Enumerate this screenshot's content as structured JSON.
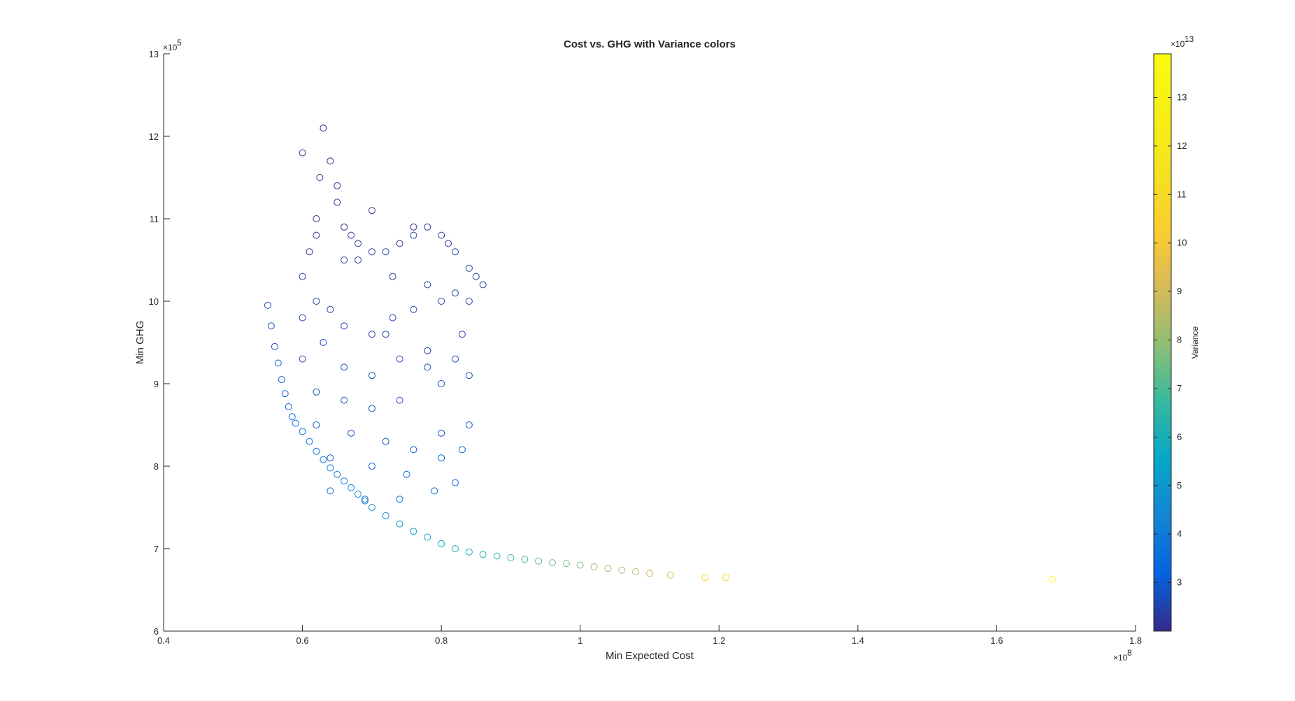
{
  "chart_data": {
    "type": "scatter",
    "title": "Cost vs. GHG with Variance colors",
    "xlabel": "Min Expected Cost",
    "ylabel": "Min GHG",
    "colorbar_label": "Variance",
    "x_axis": {
      "lim": [
        0.4,
        1.8
      ],
      "ticks": [
        0.4,
        0.6,
        0.8,
        1.0,
        1.2,
        1.4,
        1.6,
        1.8
      ],
      "tick_labels": [
        "0.4",
        "0.6",
        "0.8",
        "1",
        "1.2",
        "1.4",
        "1.6",
        "1.8"
      ],
      "exponent_base": "×10",
      "exponent": "8"
    },
    "y_axis": {
      "lim": [
        6,
        13
      ],
      "ticks": [
        6,
        7,
        8,
        9,
        10,
        11,
        12,
        13
      ],
      "tick_labels": [
        "6",
        "7",
        "8",
        "9",
        "10",
        "11",
        "12",
        "13"
      ],
      "exponent_base": "×10",
      "exponent": "5"
    },
    "colorbar": {
      "lim": [
        2.0,
        13.9
      ],
      "ticks": [
        3,
        4,
        5,
        6,
        7,
        8,
        9,
        10,
        11,
        12,
        13
      ],
      "tick_labels": [
        "3",
        "4",
        "5",
        "6",
        "7",
        "8",
        "9",
        "10",
        "11",
        "12",
        "13"
      ],
      "exponent_base": "×10",
      "exponent": "13",
      "colormap": "parula"
    },
    "grid": false,
    "marker": "open-circle",
    "front_points": {
      "x": [
        0.55,
        0.555,
        0.56,
        0.565,
        0.57,
        0.575,
        0.58,
        0.585,
        0.59,
        0.6,
        0.61,
        0.62,
        0.63,
        0.64,
        0.65,
        0.66,
        0.67,
        0.68,
        0.69,
        0.7,
        0.72,
        0.74,
        0.76,
        0.78,
        0.8,
        0.82,
        0.84,
        0.86,
        0.88,
        0.9,
        0.92,
        0.94,
        0.96,
        0.98,
        1.0,
        1.02,
        1.04,
        1.06,
        1.08,
        1.1,
        1.13,
        1.18,
        1.21,
        1.68
      ],
      "y": [
        9.95,
        9.7,
        9.45,
        9.25,
        9.05,
        8.88,
        8.72,
        8.6,
        8.52,
        8.42,
        8.3,
        8.18,
        8.08,
        7.98,
        7.9,
        7.82,
        7.74,
        7.66,
        7.58,
        7.5,
        7.4,
        7.3,
        7.21,
        7.14,
        7.06,
        7.0,
        6.96,
        6.93,
        6.91,
        6.89,
        6.87,
        6.85,
        6.83,
        6.82,
        6.8,
        6.78,
        6.76,
        6.74,
        6.72,
        6.7,
        6.68,
        6.65,
        6.65,
        6.63
      ],
      "variance": [
        2.6,
        2.7,
        2.8,
        2.9,
        3.0,
        3.1,
        3.2,
        3.3,
        3.4,
        3.5,
        3.6,
        3.7,
        3.8,
        3.9,
        4.0,
        4.1,
        4.2,
        4.3,
        4.4,
        4.5,
        4.6,
        4.8,
        5.0,
        5.3,
        5.6,
        5.9,
        6.1,
        6.3,
        6.5,
        6.7,
        6.9,
        7.1,
        7.3,
        7.5,
        7.7,
        7.9,
        8.1,
        8.3,
        8.6,
        9.0,
        9.4,
        10.5,
        11.0,
        13.5
      ]
    },
    "interior_points": {
      "x": [
        0.6,
        0.61,
        0.62,
        0.625,
        0.63,
        0.64,
        0.65,
        0.66,
        0.67,
        0.68,
        0.7,
        0.72,
        0.74,
        0.76,
        0.78,
        0.8,
        0.82,
        0.84,
        0.85,
        0.86,
        0.6,
        0.62,
        0.64,
        0.66,
        0.7,
        0.73,
        0.76,
        0.8,
        0.82,
        0.6,
        0.63,
        0.66,
        0.7,
        0.74,
        0.78,
        0.82,
        0.62,
        0.66,
        0.7,
        0.74,
        0.8,
        0.84,
        0.62,
        0.67,
        0.72,
        0.76,
        0.8,
        0.84,
        0.64,
        0.7,
        0.75,
        0.8,
        0.83,
        0.64,
        0.69,
        0.74,
        0.79,
        0.82,
        0.6,
        0.65,
        0.7,
        0.76,
        0.81,
        0.62,
        0.68,
        0.73,
        0.78,
        0.84,
        0.66,
        0.72,
        0.78,
        0.83
      ],
      "y": [
        10.3,
        10.6,
        11.0,
        11.5,
        12.1,
        11.7,
        11.2,
        10.9,
        10.8,
        10.7,
        10.6,
        10.6,
        10.7,
        10.8,
        10.9,
        10.8,
        10.6,
        10.4,
        10.3,
        10.2,
        9.8,
        10.0,
        9.9,
        9.7,
        9.6,
        9.8,
        9.9,
        10.0,
        10.1,
        9.3,
        9.5,
        9.2,
        9.1,
        9.3,
        9.2,
        9.3,
        8.9,
        8.8,
        8.7,
        8.8,
        9.0,
        9.1,
        8.5,
        8.4,
        8.3,
        8.2,
        8.4,
        8.5,
        8.1,
        8.0,
        7.9,
        8.1,
        8.2,
        7.7,
        7.6,
        7.6,
        7.7,
        7.8,
        11.8,
        11.4,
        11.1,
        10.9,
        10.7,
        10.8,
        10.5,
        10.3,
        10.2,
        10.0,
        10.5,
        9.6,
        9.4,
        9.6
      ],
      "variance": [
        2.3,
        2.2,
        2.1,
        2.1,
        2.05,
        2.1,
        2.2,
        2.2,
        2.3,
        2.3,
        2.2,
        2.3,
        2.2,
        2.3,
        2.2,
        2.3,
        2.4,
        2.4,
        2.4,
        2.4,
        2.5,
        2.4,
        2.5,
        2.5,
        2.4,
        2.5,
        2.5,
        2.5,
        2.5,
        2.6,
        2.6,
        2.6,
        2.6,
        2.6,
        2.6,
        2.6,
        2.7,
        2.7,
        2.7,
        2.7,
        2.7,
        2.7,
        2.8,
        2.8,
        2.8,
        2.9,
        2.8,
        2.8,
        3.0,
        3.1,
        3.2,
        3.1,
        3.0,
        3.5,
        3.6,
        3.7,
        3.6,
        3.5,
        2.1,
        2.1,
        2.2,
        2.2,
        2.3,
        2.2,
        2.3,
        2.3,
        2.4,
        2.4,
        2.3,
        2.5,
        2.5,
        2.5
      ]
    }
  }
}
